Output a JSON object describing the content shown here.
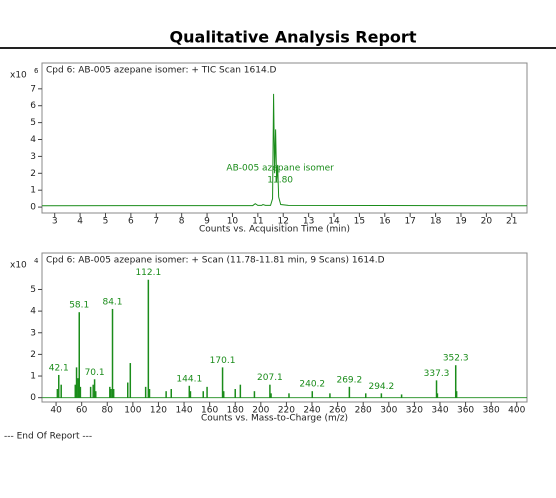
{
  "header": {
    "title": "Qualitative Analysis Report"
  },
  "chart_data": [
    {
      "type": "line",
      "title": "Cpd 6: AB-005 azepane isomer: + TIC Scan 1614.D",
      "x_label": "Counts vs. Acquisition Time (min)",
      "y_multiplier": "x10",
      "y_exponent": "6",
      "color": "#1a8c1a",
      "x": [
        2.5,
        10.8,
        10.9,
        11.0,
        11.15,
        11.2,
        11.3,
        11.5,
        11.58,
        11.62,
        11.66,
        11.7,
        11.74,
        11.78,
        11.82,
        11.9,
        12.2,
        21.6
      ],
      "values": [
        0.08,
        0.09,
        0.2,
        0.1,
        0.1,
        0.15,
        0.1,
        0.1,
        0.5,
        6.7,
        2.0,
        4.6,
        1.5,
        2.5,
        0.6,
        0.15,
        0.1,
        0.08
      ],
      "xlim": [
        2.5,
        21.6
      ],
      "xticks": [
        3,
        4,
        5,
        6,
        7,
        8,
        9,
        10,
        11,
        12,
        13,
        14,
        15,
        16,
        17,
        18,
        19,
        20,
        21
      ],
      "ylim": [
        -0.35,
        7.7
      ],
      "yticks": [
        0,
        1,
        2,
        3,
        4,
        5,
        6,
        7
      ],
      "annotation": {
        "label": "AB-005 azepane isomer",
        "rt": "11.80"
      }
    },
    {
      "type": "bar",
      "title": "Cpd 6: AB-005 azepane isomer: + Scan (11.78-11.81 min, 9 Scans) 1614.D",
      "x_label": "Counts vs. Mass-to-Charge (m/z)",
      "y_multiplier": "x10",
      "y_exponent": "4",
      "color": "#1a8c1a",
      "x": [
        41,
        42.1,
        44,
        55,
        56,
        57,
        58.1,
        59,
        67,
        69,
        70.1,
        71,
        82,
        83,
        84.1,
        85,
        96,
        98,
        110,
        112.1,
        113,
        126,
        130,
        144.1,
        145,
        155,
        158,
        170.1,
        171,
        180,
        184,
        195,
        207.1,
        208,
        222,
        240.2,
        254,
        269.2,
        282,
        294.2,
        310,
        337.3,
        338,
        352.3,
        353
      ],
      "values": [
        0.4,
        1.05,
        0.6,
        0.6,
        1.4,
        0.9,
        3.95,
        0.5,
        0.5,
        0.6,
        0.85,
        0.3,
        0.5,
        0.4,
        4.1,
        0.4,
        0.7,
        1.6,
        0.5,
        5.45,
        0.4,
        0.3,
        0.4,
        0.55,
        0.3,
        0.3,
        0.5,
        1.4,
        0.3,
        0.4,
        0.6,
        0.3,
        0.6,
        0.2,
        0.2,
        0.3,
        0.2,
        0.5,
        0.2,
        0.2,
        0.15,
        0.8,
        0.2,
        1.5,
        0.3
      ],
      "x_labels": [
        null,
        "42.1",
        null,
        null,
        null,
        null,
        "58.1",
        null,
        null,
        null,
        "70.1",
        null,
        null,
        null,
        "84.1",
        null,
        null,
        null,
        null,
        "112.1",
        null,
        null,
        null,
        "144.1",
        null,
        null,
        null,
        "170.1",
        null,
        null,
        null,
        null,
        "207.1",
        null,
        null,
        "240.2",
        null,
        "269.2",
        null,
        "294.2",
        null,
        "337.3",
        null,
        "352.3",
        null
      ],
      "xlim": [
        29,
        408
      ],
      "xticks": [
        40,
        60,
        80,
        100,
        120,
        140,
        160,
        180,
        200,
        220,
        240,
        260,
        280,
        300,
        320,
        340,
        360,
        380,
        400
      ],
      "ylim": [
        -0.2,
        5.9
      ],
      "yticks": [
        0,
        1,
        2,
        3,
        4,
        5
      ]
    }
  ],
  "footer": "--- End Of Report ---"
}
